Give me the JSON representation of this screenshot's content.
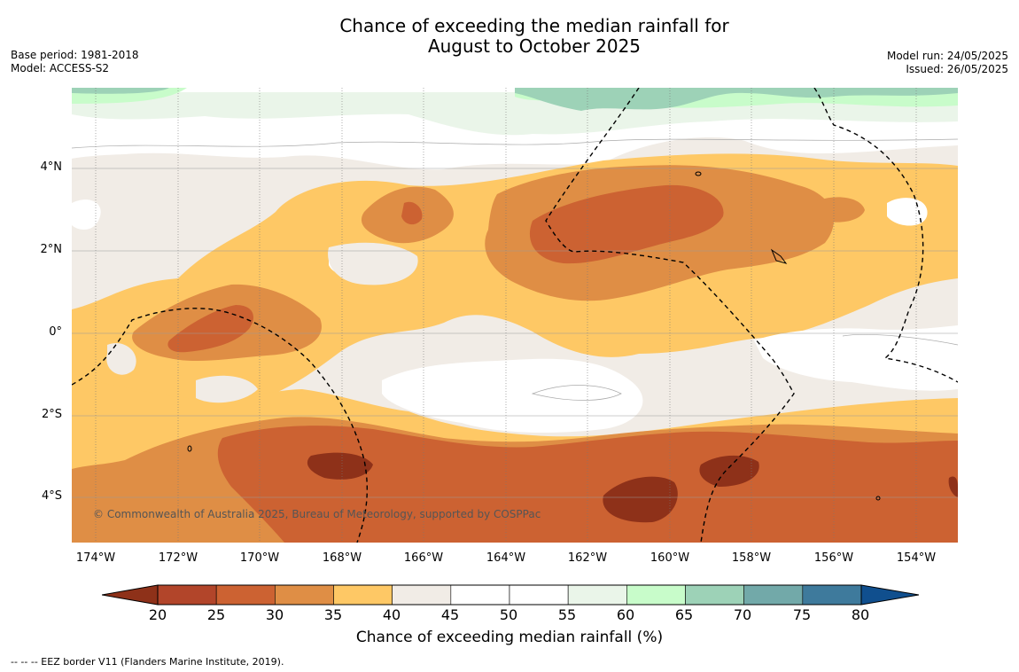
{
  "title": {
    "line1": "Chance of exceeding the median rainfall for",
    "line2": "August to October 2025"
  },
  "meta_left": {
    "base_period": "Base period: 1981-2018",
    "model": "Model: ACCESS-S2"
  },
  "meta_right": {
    "model_run": "Model run: 24/05/2025",
    "issued": "Issued: 26/05/2025"
  },
  "map": {
    "lat_labels": [
      "4°N",
      "2°N",
      "0°",
      "2°S",
      "4°S"
    ],
    "lon_labels": [
      "174°W",
      "172°W",
      "170°W",
      "168°W",
      "166°W",
      "164°W",
      "162°W",
      "160°W",
      "158°W",
      "156°W",
      "154°W"
    ],
    "copyright": "© Commonwealth of Australia 2025, Bureau of Meteorology, supported by COSPPac"
  },
  "colorbar": {
    "ticks": [
      "20",
      "25",
      "30",
      "35",
      "40",
      "45",
      "50",
      "55",
      "60",
      "65",
      "70",
      "75",
      "80"
    ],
    "colors": [
      "#8e3119",
      "#b2452a",
      "#cc6232",
      "#df8e45",
      "#fec865",
      "#f1ece6",
      "#ffffff",
      "#ffffff",
      "#eaf5e9",
      "#c8fcca",
      "#9dd2b7",
      "#72a9a9",
      "#3e7a9c",
      "#104f8e"
    ],
    "title": "Chance of exceeding median rainfall (%)"
  },
  "footnote": "--  --  -- EEZ border V11 (Flanders Marine Institute, 2019)."
}
